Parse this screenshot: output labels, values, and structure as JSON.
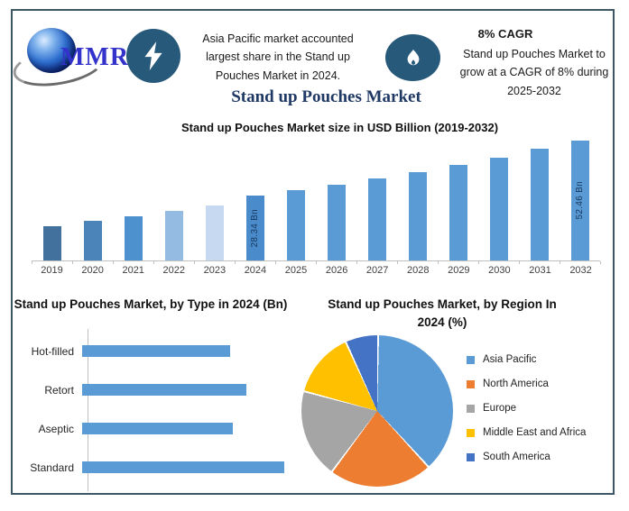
{
  "header": {
    "logo": {
      "text": "MMR",
      "icon": "mmr-globe-logo"
    },
    "callout_share": {
      "icon": "lightning-bolt-icon",
      "lines": [
        "Asia Pacific market accounted",
        "largest share in the Stand up",
        "Pouches Market in 2024."
      ]
    },
    "callout_cagr": {
      "icon": "flame-icon",
      "heading": "8% CAGR",
      "lines": [
        "Stand up Pouches Market to",
        "grow at a CAGR of 8% during",
        "2025-2032"
      ]
    }
  },
  "title": "Stand up Pouches Market",
  "colors": {
    "accent_blue": "#5B9BD5",
    "title_navy": "#1F3864",
    "icon_badge_bg": "#27597B",
    "logo_blue": "#3333CC",
    "frame_border": "#3E5767",
    "axis_gray": "#C0C0C0"
  },
  "chart_data": [
    {
      "type": "bar",
      "title": "Stand up Pouches Market size in USD Billion (2019-2032)",
      "unit": "USD Billion",
      "categories": [
        "2019",
        "2020",
        "2021",
        "2022",
        "2023",
        "2024",
        "2025",
        "2026",
        "2027",
        "2028",
        "2029",
        "2030",
        "2031",
        "2032"
      ],
      "values": [
        15.0,
        17.3,
        19.3,
        21.6,
        24.0,
        28.34,
        30.6,
        33.1,
        35.7,
        38.6,
        41.6,
        45.0,
        48.6,
        52.46
      ],
      "labeled_values": {
        "2024": "28.34 Bn",
        "2032": "52.46 Bn"
      },
      "label_colors": {
        "2024": "#17375E",
        "2032": "#17375E"
      },
      "bar_colors": {
        "2019": "#41719C",
        "2020": "#4A84B8",
        "2021": "#4E91CF",
        "2022": "#94BCE3",
        "2023": "#C6D9F0",
        "2024": "#4A8CCB",
        "default": "#5B9BD5"
      },
      "ylim": [
        0,
        55
      ],
      "grid": false,
      "note": "Only 2024 and 2032 bars carry data labels; other values estimated from bar heights at 8% CAGR trend"
    },
    {
      "type": "bar",
      "orientation": "horizontal",
      "title": "Stand up Pouches Market, by Type in 2024 (Bn)",
      "title_lines": [
        "Stand up Pouches Market, by Type in",
        "2024 (Bn)"
      ],
      "unit": "Bn",
      "categories": [
        "Hot-filled",
        "Retort",
        "Aseptic",
        "Standard"
      ],
      "values": [
        6.3,
        7.0,
        6.4,
        8.6
      ],
      "bar_color": "#5B9BD5",
      "grid": false,
      "note": "No value labels shown; values estimated from relative bar lengths"
    },
    {
      "type": "pie",
      "title": "Stand up Pouches Market, by Region In 2024 (%)",
      "title_lines": [
        "Stand up Pouches Market, by Region In",
        "2024 (%)"
      ],
      "unit": "%",
      "labels": [
        "Asia Pacific",
        "North America",
        "Europe",
        "Middle East and Africa",
        "South America"
      ],
      "values": [
        38,
        22,
        19,
        14,
        7
      ],
      "colors": [
        "#5B9BD5",
        "#ED7D31",
        "#A5A5A5",
        "#FFC000",
        "#4472C4"
      ],
      "legend_position": "right",
      "start_angle_deg": 0,
      "note": "Percentages estimated from slice angles"
    }
  ]
}
